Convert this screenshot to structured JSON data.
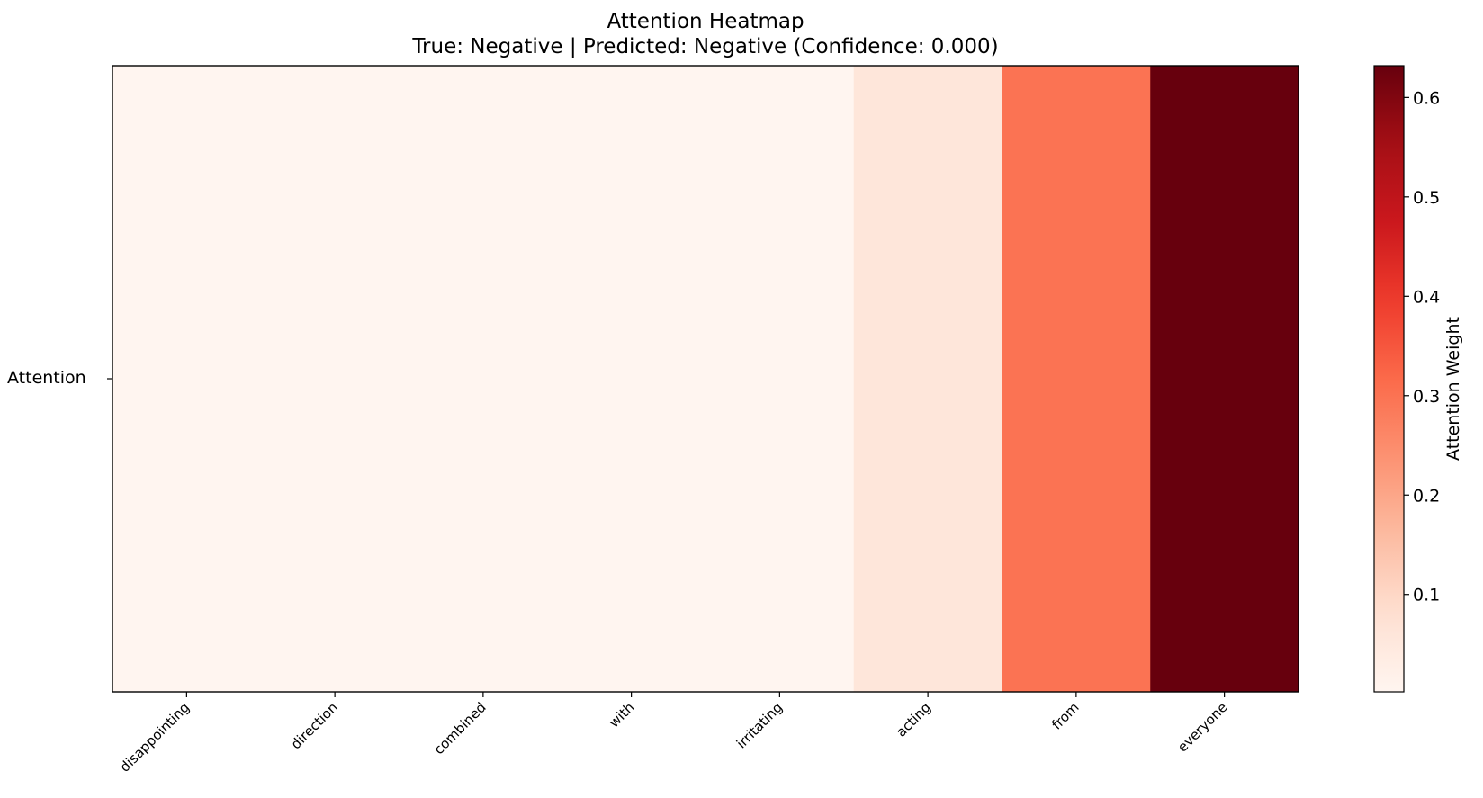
{
  "chart_data": {
    "type": "heatmap",
    "title": "Attention Heatmap",
    "subtitle": "True: Negative | Predicted: Negative (Confidence: 0.000)",
    "x_categories": [
      "disappointing",
      "direction",
      "combined",
      "with",
      "irritating",
      "acting",
      "from",
      "everyone"
    ],
    "y_categories": [
      "Attention"
    ],
    "values": [
      [
        0.002,
        0.002,
        0.002,
        0.002,
        0.002,
        0.06,
        0.3,
        0.632
      ]
    ],
    "colorbar": {
      "label": "Attention Weight",
      "range": [
        0.002,
        0.632
      ],
      "ticks": [
        0.1,
        0.2,
        0.3,
        0.4,
        0.5,
        0.6
      ],
      "tick_labels": [
        "0.1",
        "0.2",
        "0.3",
        "0.4",
        "0.5",
        "0.6"
      ],
      "colormap": "Reds"
    },
    "grid": false
  }
}
